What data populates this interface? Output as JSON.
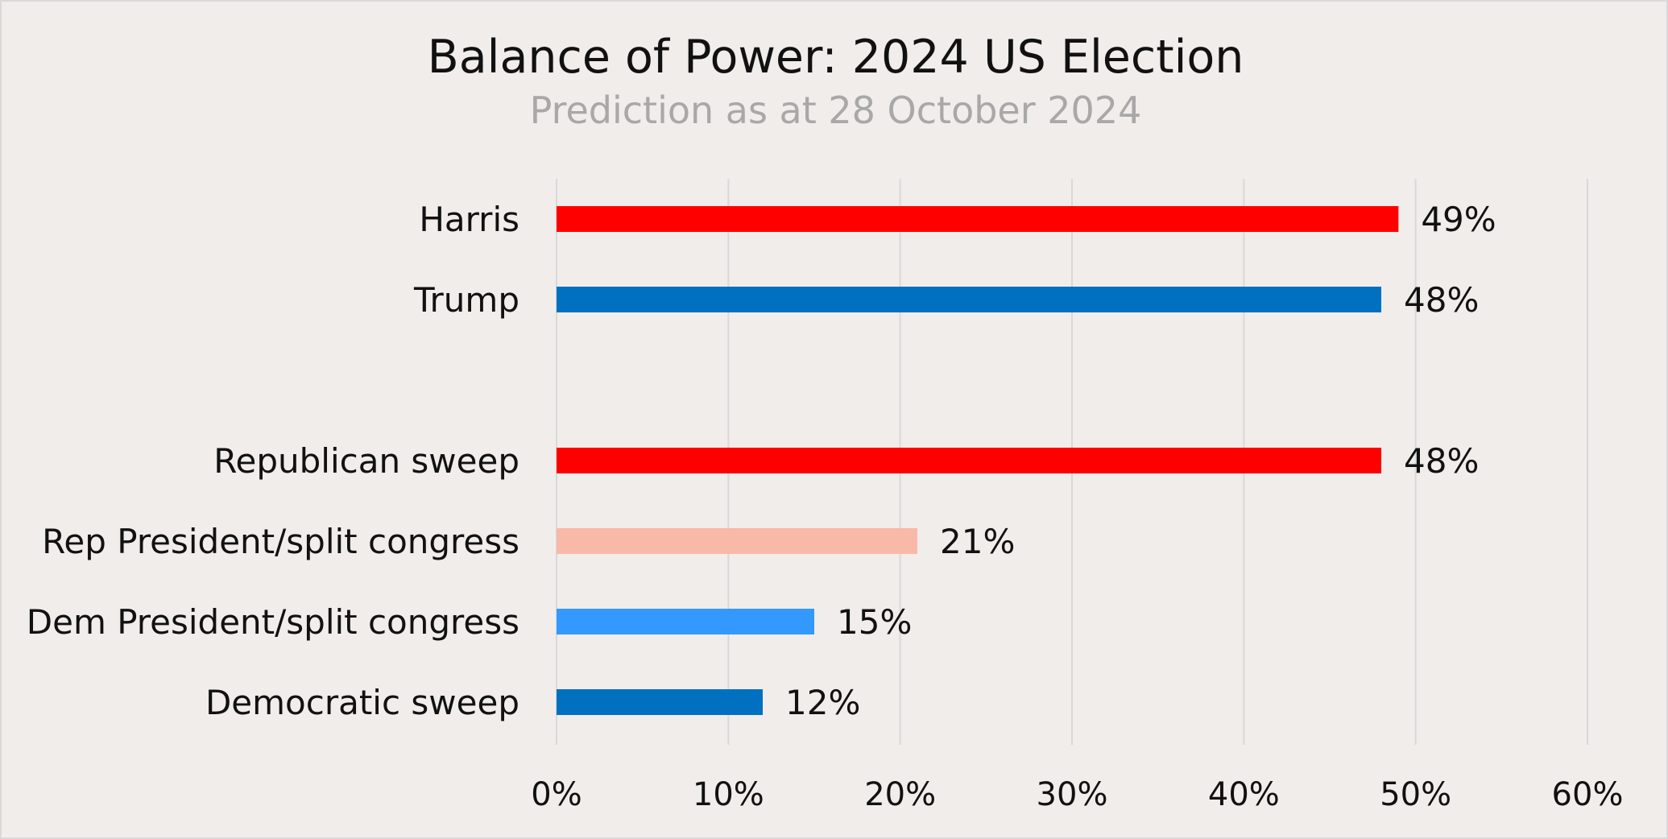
{
  "chart_data": {
    "type": "bar",
    "orientation": "horizontal",
    "title": "Balance of Power: 2024 US Election",
    "subtitle": "Prediction as at 28 October 2024",
    "xlabel": "",
    "ylabel": "",
    "xlim": [
      0,
      60
    ],
    "xticks": [
      0,
      10,
      20,
      30,
      40,
      50,
      60
    ],
    "tick_suffix": "%",
    "value_suffix": "%",
    "grid": true,
    "legend": "none",
    "categories": [
      "Harris",
      "Trump",
      "Republican sweep",
      "Rep President/split congress",
      "Dem President/split congress",
      "Democratic sweep"
    ],
    "values": [
      49,
      48,
      48,
      21,
      15,
      12
    ],
    "colors": [
      "#ff0000",
      "#0070c0",
      "#ff0000",
      "#f9b9a8",
      "#3399ff",
      "#0070c0"
    ]
  }
}
